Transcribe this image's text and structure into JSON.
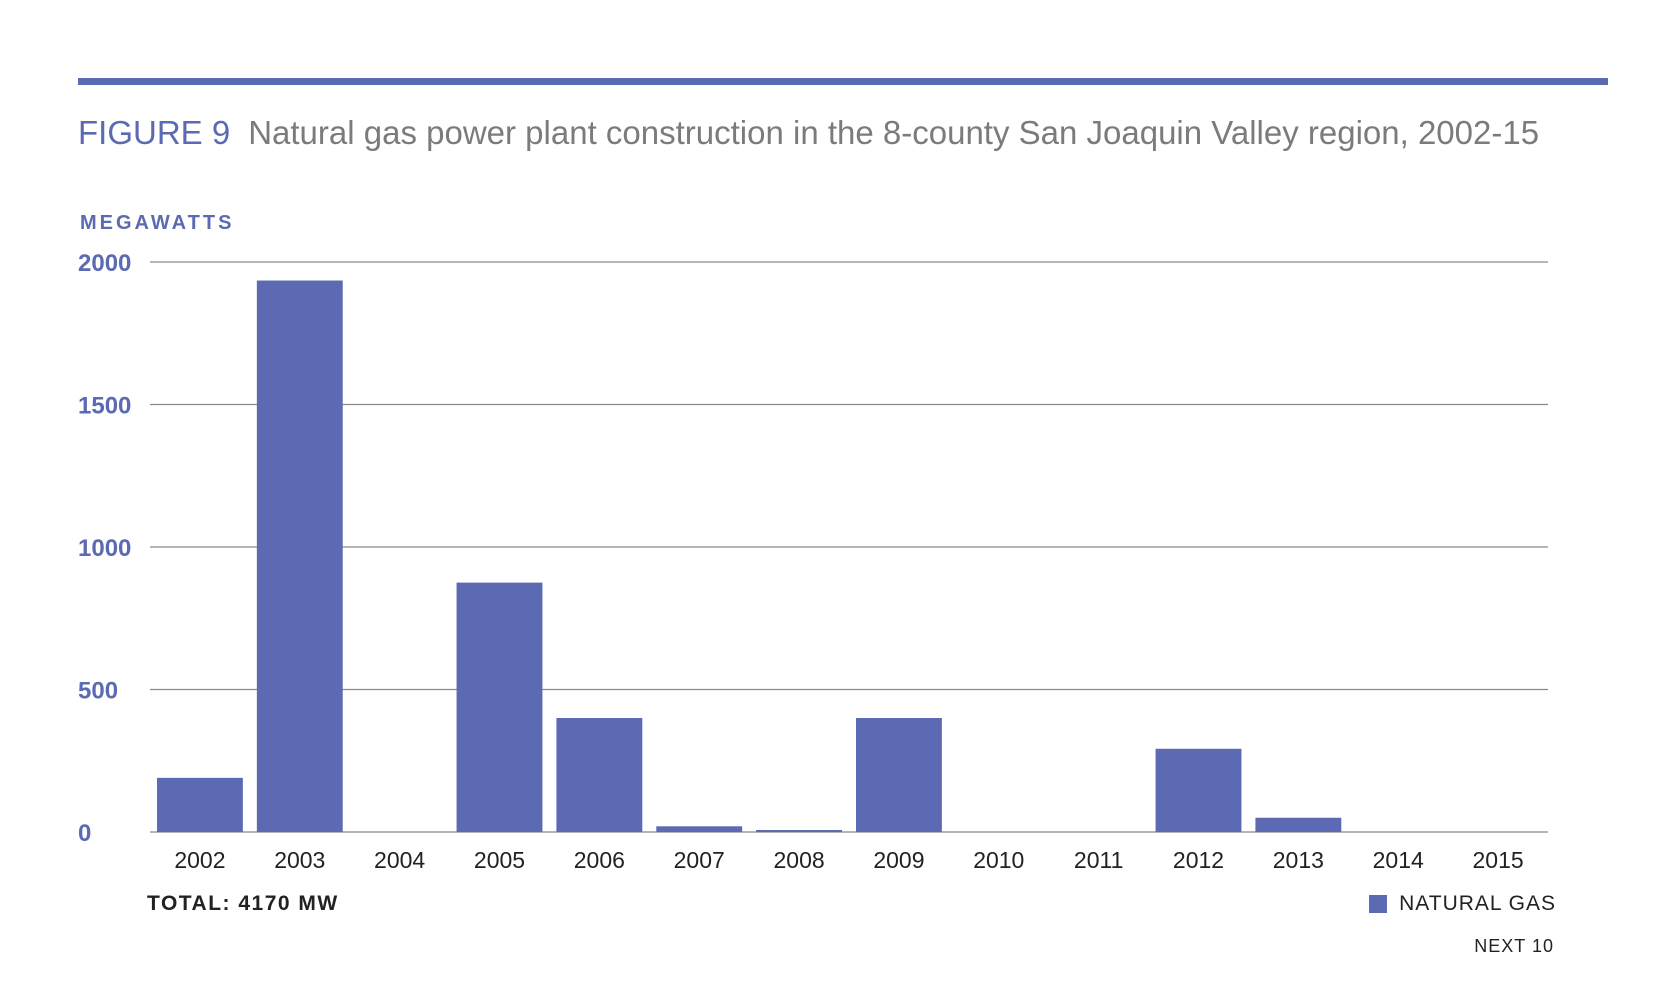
{
  "figure": {
    "label": "FIGURE 9",
    "title": "Natural gas power plant construction in the 8-county San Joaquin Valley region, 2002-15"
  },
  "total_label": "TOTAL: 4170 MW",
  "source": "NEXT 10",
  "colors": {
    "accent": "#5b6ab2",
    "grid": "#8a8a8a",
    "axis_text": "#5b6ab2"
  },
  "chart_data": {
    "type": "bar",
    "ylabel": "MEGAWATTS",
    "xlabel": "",
    "ylim": [
      0,
      2000
    ],
    "yticks": [
      0,
      500,
      1000,
      1500,
      2000
    ],
    "grid": true,
    "legend_position": "bottom-right",
    "categories": [
      "2002",
      "2003",
      "2004",
      "2005",
      "2006",
      "2007",
      "2008",
      "2009",
      "2010",
      "2011",
      "2012",
      "2013",
      "2014",
      "2015"
    ],
    "series": [
      {
        "name": "NATURAL GAS",
        "values": [
          190,
          1935,
          0,
          875,
          400,
          20,
          7,
          400,
          0,
          0,
          292,
          50,
          0,
          0
        ]
      }
    ]
  }
}
